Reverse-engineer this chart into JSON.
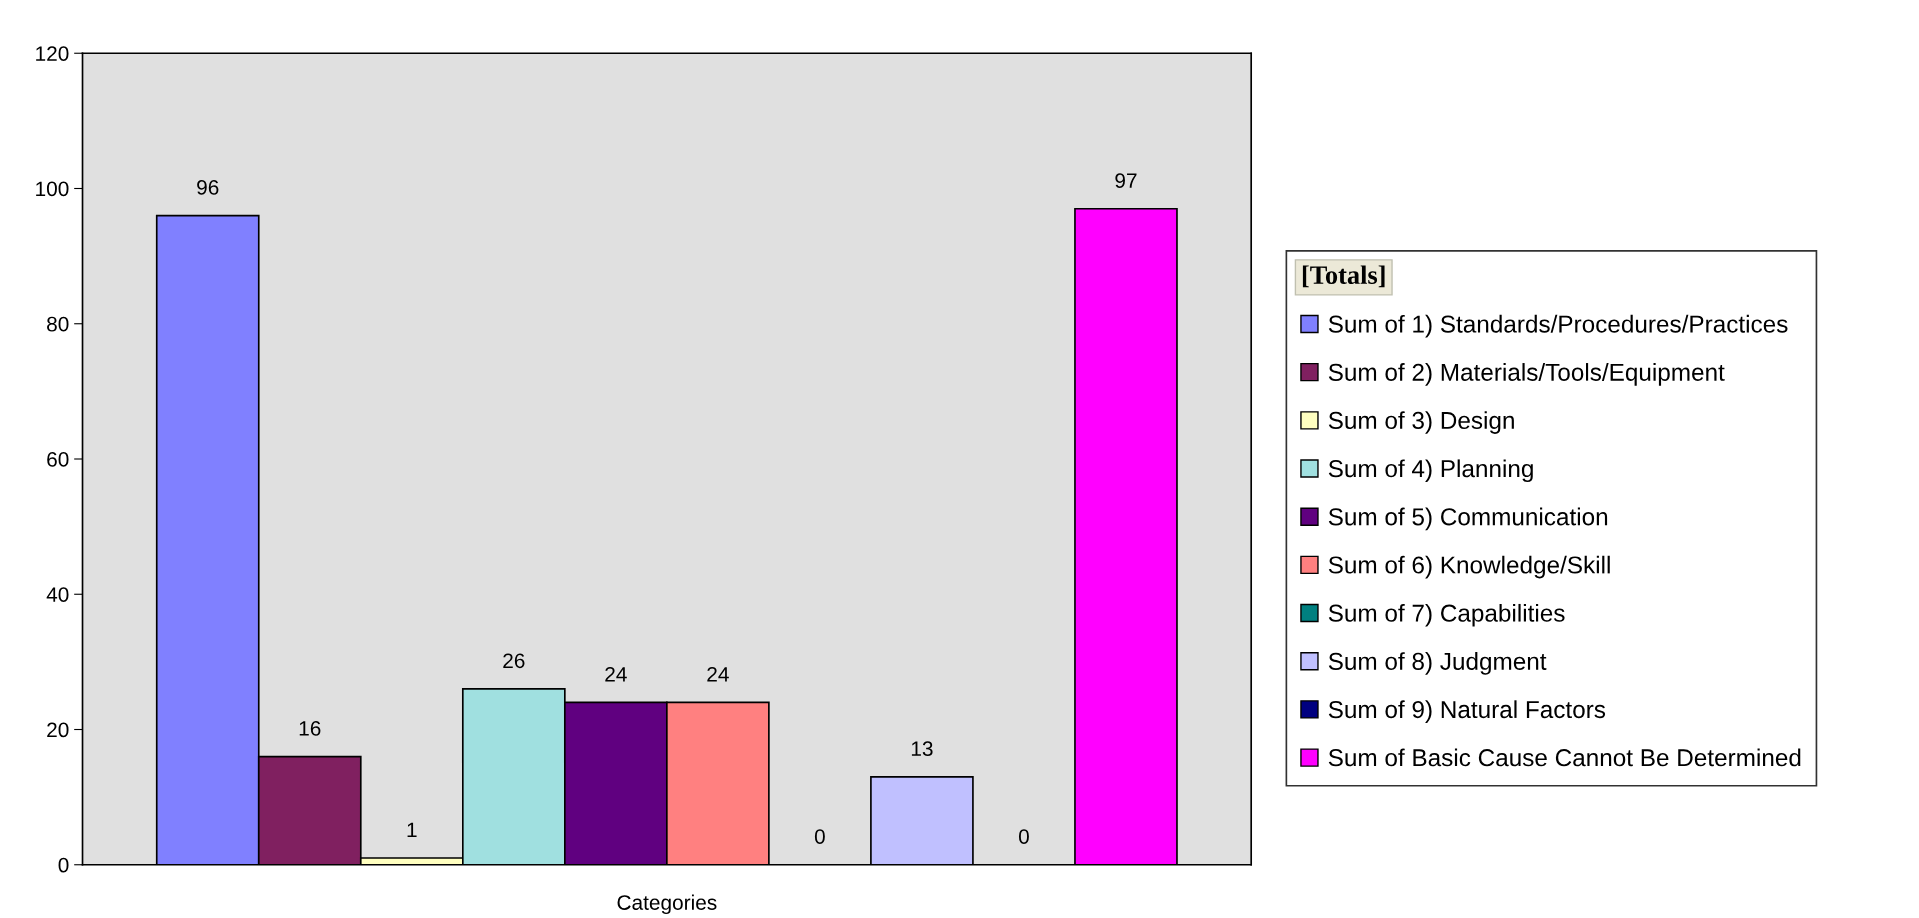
{
  "chart_data": {
    "type": "bar",
    "xlabel": "Categories",
    "legend_title": "[Totals]",
    "categories": [
      null
    ],
    "series": [
      {
        "name": "Sum of 1) Standards/Procedures/Practices",
        "color": "#8080ff",
        "values": [
          96
        ]
      },
      {
        "name": "Sum of 2) Materials/Tools/Equipment",
        "color": "#802060",
        "values": [
          16
        ]
      },
      {
        "name": "Sum of 3) Design",
        "color": "#ffffc0",
        "values": [
          1
        ]
      },
      {
        "name": "Sum of 4) Planning",
        "color": "#a0e0e0",
        "values": [
          26
        ]
      },
      {
        "name": "Sum of 5) Communication",
        "color": "#600080",
        "values": [
          24
        ]
      },
      {
        "name": "Sum of 6) Knowledge/Skill",
        "color": "#ff8080",
        "values": [
          24
        ]
      },
      {
        "name": "Sum of 7) Capabilities",
        "color": "#008080",
        "values": [
          0
        ]
      },
      {
        "name": "Sum of 8) Judgment",
        "color": "#c0c0ff",
        "values": [
          13
        ]
      },
      {
        "name": "Sum of 9) Natural Factors",
        "color": "#000080",
        "values": [
          0
        ]
      },
      {
        "name": "Sum of Basic Cause Cannot Be Determined",
        "color": "#ff00ff",
        "values": [
          97
        ]
      }
    ],
    "ylim": [
      0,
      120
    ],
    "yticks": [
      0,
      20,
      40,
      60,
      80,
      100,
      120
    ],
    "data_labels": true,
    "grid": false,
    "legend": "right"
  }
}
